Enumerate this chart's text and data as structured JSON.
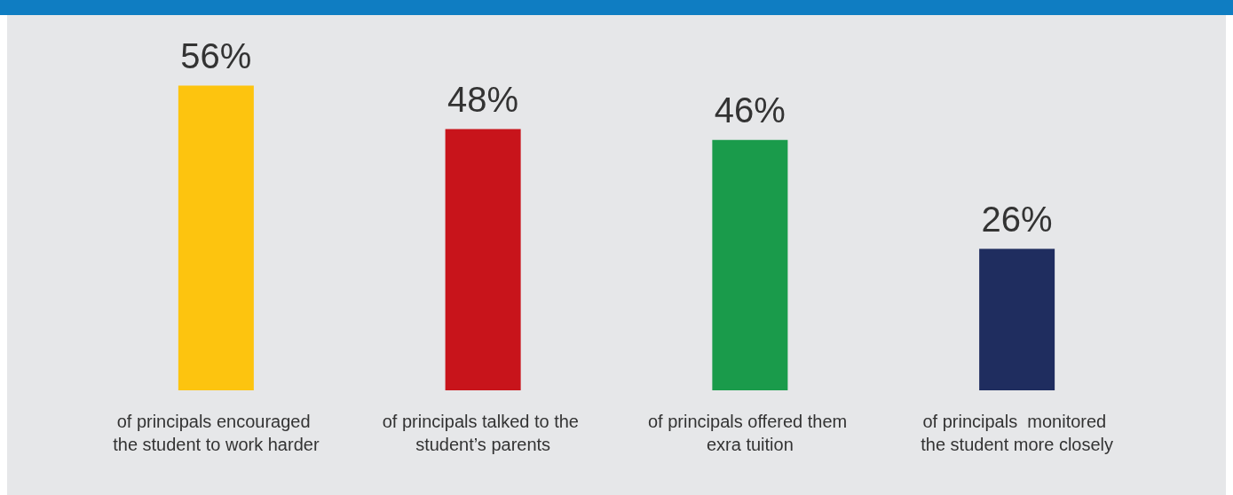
{
  "chart_data": {
    "type": "bar",
    "categories": [
      "of principals encouraged the student to work harder",
      "of principals talked to the student’s parents",
      "of principals offered them exra tuition",
      "of principals  monitored the student more closely"
    ],
    "values": [
      56,
      48,
      46,
      26
    ],
    "colors": [
      "#fdc40f",
      "#c8141b",
      "#1a9b4b",
      "#1f2d5f"
    ],
    "value_labels": [
      "56%",
      "48%",
      "46%",
      "26%"
    ]
  }
}
